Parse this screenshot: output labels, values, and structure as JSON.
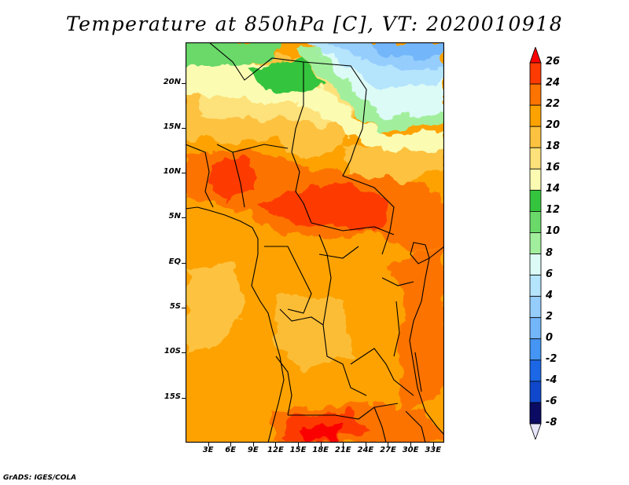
{
  "title": "Temperature at 850hPa [C], VT: 2020010918",
  "footer": "GrADS: IGES/COLA",
  "map": {
    "lat_labels": [
      "20N",
      "15N",
      "10N",
      "5N",
      "EQ",
      "5S",
      "10S",
      "15S"
    ],
    "lat_values": [
      20,
      15,
      10,
      5,
      0,
      -5,
      -10,
      -15
    ],
    "lat_range": [
      -20,
      24.5
    ],
    "lon_labels": [
      "3E",
      "6E",
      "9E",
      "12E",
      "15E",
      "18E",
      "21E",
      "24E",
      "27E",
      "30E",
      "33E"
    ],
    "lon_values": [
      3,
      6,
      9,
      12,
      15,
      18,
      21,
      24,
      27,
      30,
      33
    ],
    "lon_range": [
      0,
      34.5
    ],
    "variable": "Temperature at 850hPa",
    "unit": "C"
  },
  "colorbar": {
    "levels": [
      "26",
      "24",
      "22",
      "20",
      "18",
      "16",
      "14",
      "12",
      "10",
      "8",
      "6",
      "4",
      "2",
      "0",
      "-2",
      "-4",
      "-6",
      "-8"
    ],
    "colors": [
      "#fb0000",
      "#fd3b00",
      "#fd7300",
      "#fda200",
      "#fdc23f",
      "#fde17a",
      "#fbfcb2",
      "#35c43e",
      "#6ad96a",
      "#a1ef9c",
      "#dcfbf6",
      "#b5e4fd",
      "#95cdfd",
      "#73b6fa",
      "#4495f4",
      "#1b67e6",
      "#0f48cc",
      "#0a1c8e",
      "#0b0b63"
    ],
    "overflow_color": "#e6e6fb"
  }
}
